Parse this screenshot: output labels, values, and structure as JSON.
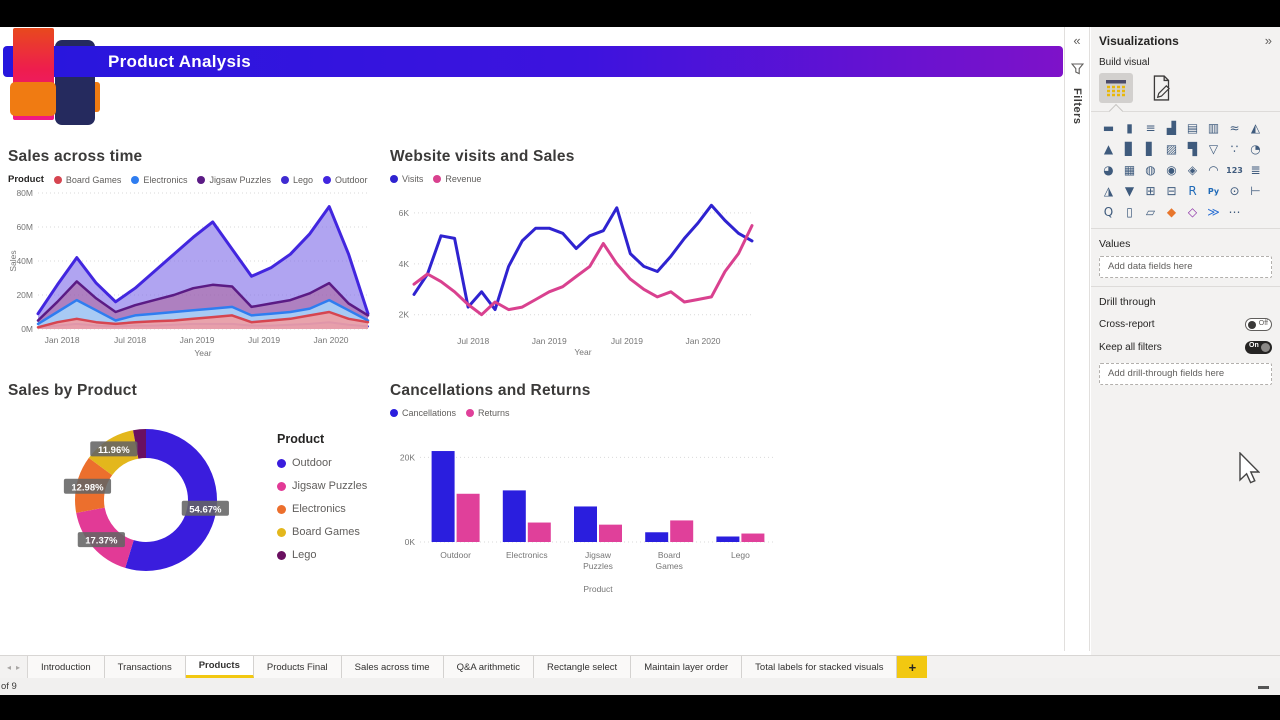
{
  "header": {
    "title": "Product Analysis"
  },
  "chart_data": [
    {
      "type": "area",
      "title": "Sales across time",
      "legend_title": "Product",
      "xlabel": "Year",
      "ylabel": "Sales",
      "ylim": [
        0,
        80
      ],
      "y_ticks": [
        [
          0,
          "0M"
        ],
        [
          20,
          "20M"
        ],
        [
          40,
          "40M"
        ],
        [
          60,
          "60M"
        ],
        [
          80,
          "80M"
        ]
      ],
      "x_ticks": {
        "labels": [
          "Jan 2018",
          "Jul 2018",
          "Jan 2019",
          "Jul 2019",
          "Jan 2020"
        ],
        "pos": [
          0.073,
          0.279,
          0.482,
          0.685,
          0.888
        ]
      },
      "series": [
        {
          "name": "Board Games",
          "color": "#d64550",
          "fill": "rgba(238,160,165,0.92)",
          "width": 2.5,
          "values": [
            1,
            4,
            6,
            4,
            3,
            4,
            4.5,
            5,
            6,
            7,
            8,
            4,
            5,
            6,
            8,
            10,
            6,
            4
          ]
        },
        {
          "name": "Electronics",
          "color": "#2f7df0",
          "fill": "rgba(168,206,247,0.95)",
          "width": 2.5,
          "values": [
            3,
            10,
            17,
            11,
            5,
            8,
            9,
            10,
            11,
            12,
            13,
            8,
            9,
            10,
            12,
            17,
            11,
            5
          ]
        },
        {
          "name": "Jigsaw Puzzles",
          "color": "#5b1b85",
          "fill": "rgba(170,72,112,0.38)",
          "width": 2.5,
          "values": [
            5,
            16,
            28,
            18,
            10,
            14,
            17,
            20,
            24,
            26,
            25,
            13,
            15,
            17,
            21,
            27,
            15,
            8
          ]
        },
        {
          "name": "Lego",
          "color": "#3f2bd1",
          "fill": "rgba(130,112,230,0.5)",
          "width": 2,
          "values": [
            1,
            2,
            3,
            2,
            1.5,
            2,
            2,
            2.5,
            3,
            3,
            3,
            2,
            2,
            2.5,
            3,
            4,
            2.5,
            1.5
          ]
        },
        {
          "name": "Outdoor",
          "color": "#4226df",
          "fill": "rgba(128,108,232,0.62)",
          "width": 3,
          "values": [
            9,
            26,
            42,
            27,
            16,
            24,
            34,
            44,
            54,
            63,
            47,
            31,
            36,
            44,
            56,
            72,
            44,
            9
          ]
        }
      ],
      "draw_order": [
        4,
        2,
        1,
        3,
        0
      ]
    },
    {
      "type": "line",
      "title": "Website visits and Sales",
      "xlabel": "Year",
      "ylabel": "",
      "ylim": [
        1.4,
        6.9
      ],
      "y_ticks": [
        [
          2,
          "2K"
        ],
        [
          4,
          "4K"
        ],
        [
          6,
          "6K"
        ]
      ],
      "x_ticks": {
        "labels": [
          "Jul 2018",
          "Jan 2019",
          "Jul 2019",
          "Jan 2020"
        ],
        "pos": [
          0.175,
          0.4,
          0.63,
          0.855
        ]
      },
      "series": [
        {
          "name": "Visits",
          "color": "#2f23d0",
          "width": 3,
          "values": [
            2.8,
            3.6,
            5.1,
            5.0,
            2.3,
            2.9,
            2.2,
            3.9,
            4.9,
            5.4,
            5.4,
            5.2,
            4.6,
            5.1,
            5.3,
            6.2,
            4.4,
            3.9,
            3.7,
            4.3,
            5.0,
            5.6,
            6.3,
            5.7,
            5.2,
            4.9
          ]
        },
        {
          "name": "Revenue",
          "color": "#d9418f",
          "width": 3,
          "values": [
            3.2,
            3.6,
            3.3,
            2.9,
            2.4,
            2.0,
            2.5,
            2.2,
            2.3,
            2.6,
            2.9,
            3.1,
            3.5,
            3.9,
            4.8,
            4.0,
            3.4,
            3.0,
            2.7,
            2.9,
            2.5,
            2.6,
            2.7,
            3.7,
            4.4,
            5.5
          ]
        }
      ]
    },
    {
      "type": "donut",
      "title": "Sales by Product",
      "legend_title": "Product",
      "slices": [
        {
          "label": "Outdoor",
          "value": 54.67,
          "display": "54.67%",
          "color": "#3a1ddd"
        },
        {
          "label": "Jigsaw Puzzles",
          "value": 17.37,
          "display": "17.37%",
          "color": "#e23a96"
        },
        {
          "label": "Electronics",
          "value": 12.98,
          "display": "12.98%",
          "color": "#ec6f2d"
        },
        {
          "label": "Board Games",
          "value": 11.96,
          "display": "11.96%",
          "color": "#e3b71c"
        },
        {
          "label": "Lego",
          "value": 3.02,
          "display": "",
          "color": "#6a1060"
        }
      ]
    },
    {
      "type": "bar",
      "title": "Cancellations and Returns",
      "xlabel": "Product",
      "categories": [
        "Outdoor",
        "Electronics",
        "Jigsaw Puzzles",
        "Board Games",
        "Lego"
      ],
      "ylim": [
        0,
        26
      ],
      "y_ticks": [
        [
          0,
          "0K"
        ],
        [
          20,
          "20K"
        ]
      ],
      "series": [
        {
          "name": "Cancellations",
          "color": "#2a1ede",
          "values": [
            21.5,
            12.2,
            8.4,
            2.3,
            1.3
          ]
        },
        {
          "name": "Returns",
          "color": "#e0409a",
          "values": [
            11.4,
            4.6,
            4.1,
            5.1,
            2.0
          ]
        }
      ]
    }
  ],
  "filters_pane": {
    "expand_icon": "«",
    "label": "Filters"
  },
  "visualizations_pane": {
    "title": "Visualizations",
    "collapse_icon": "»",
    "build_visual_label": "Build visual",
    "values_label": "Values",
    "values_placeholder": "Add data fields here",
    "drill_through_label": "Drill through",
    "cross_report_label": "Cross-report",
    "cross_report_state": "Off",
    "keep_all_filters_label": "Keep all filters",
    "keep_all_filters_state": "On",
    "drill_placeholder": "Add drill-through fields here",
    "gallery": [
      {
        "name": "stacked-bar-chart",
        "glyph": "▬"
      },
      {
        "name": "stacked-column-chart",
        "glyph": "▮"
      },
      {
        "name": "clustered-bar-chart",
        "glyph": "≡"
      },
      {
        "name": "clustered-column-chart",
        "glyph": "▟"
      },
      {
        "name": "100-stacked-bar-chart",
        "glyph": "▤"
      },
      {
        "name": "100-stacked-column-chart",
        "glyph": "▥"
      },
      {
        "name": "line-chart",
        "glyph": "≈"
      },
      {
        "name": "area-chart",
        "glyph": "◭"
      },
      {
        "name": "stacked-area-chart",
        "glyph": "▲"
      },
      {
        "name": "line-and-stacked-column-chart",
        "glyph": "▊"
      },
      {
        "name": "line-and-clustered-column-chart",
        "glyph": "▋"
      },
      {
        "name": "ribbon-chart",
        "glyph": "▨"
      },
      {
        "name": "waterfall-chart",
        "glyph": "▜"
      },
      {
        "name": "funnel-chart",
        "glyph": "▽"
      },
      {
        "name": "scatter-chart",
        "glyph": "∵"
      },
      {
        "name": "pie-chart",
        "glyph": "◔"
      },
      {
        "name": "donut-chart",
        "glyph": "◕"
      },
      {
        "name": "treemap",
        "glyph": "▦"
      },
      {
        "name": "map",
        "glyph": "◍"
      },
      {
        "name": "filled-map",
        "glyph": "◉"
      },
      {
        "name": "shape-map",
        "glyph": "◈"
      },
      {
        "name": "gauge",
        "glyph": "◠"
      },
      {
        "name": "card",
        "glyph": "123"
      },
      {
        "name": "multi-row-card",
        "glyph": "≣"
      },
      {
        "name": "kpi",
        "glyph": "◮"
      },
      {
        "name": "slicer",
        "glyph": "▼"
      },
      {
        "name": "table",
        "glyph": "⊞"
      },
      {
        "name": "matrix",
        "glyph": "⊟"
      },
      {
        "name": "r-script-visual",
        "glyph": "R",
        "color": "#1f6ab8"
      },
      {
        "name": "python-visual",
        "glyph": "Py",
        "color": "#1f6ab8"
      },
      {
        "name": "key-influencers",
        "glyph": "⊙"
      },
      {
        "name": "decomposition-tree",
        "glyph": "⊢"
      },
      {
        "name": "q-and-a",
        "glyph": "Q"
      },
      {
        "name": "paginated-report",
        "glyph": "▯"
      },
      {
        "name": "power-apps",
        "glyph": "▱"
      },
      {
        "name": "arcgis-map",
        "glyph": "◆",
        "color": "#e8762c"
      },
      {
        "name": "power-automate",
        "glyph": "◇",
        "color": "#8a2da5"
      },
      {
        "name": "metrics",
        "glyph": "≫",
        "color": "#2a6fd4"
      },
      {
        "name": "get-more-visuals",
        "glyph": "⋯"
      }
    ]
  },
  "page_tabs": {
    "prev_icon": "◂",
    "next_icon": "▸",
    "tabs": [
      {
        "label": "Introduction"
      },
      {
        "label": "Transactions"
      },
      {
        "label": "Products",
        "active": true
      },
      {
        "label": "Products Final"
      },
      {
        "label": "Sales across time"
      },
      {
        "label": "Q&A arithmetic"
      },
      {
        "label": "Rectangle select"
      },
      {
        "label": "Maintain layer order"
      },
      {
        "label": "Total labels for stacked visuals"
      }
    ],
    "add_label": "+"
  },
  "status": {
    "page_indicator": "of 9"
  }
}
